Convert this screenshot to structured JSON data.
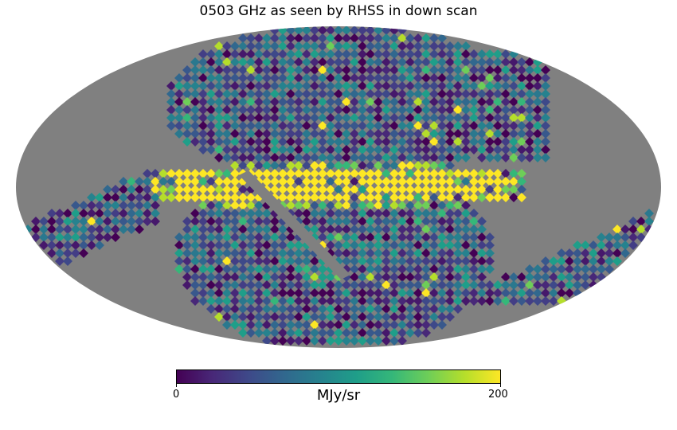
{
  "title": "0503 GHz as seen by RHSS in down scan",
  "colorbar": {
    "label": "MJy/sr",
    "min_label": "0",
    "max_label": "200",
    "min": 0,
    "max": 200,
    "colormap": "viridis",
    "stops": [
      "#440154",
      "#482878",
      "#3e4989",
      "#31688e",
      "#26828e",
      "#1f9e89",
      "#35b779",
      "#6ece58",
      "#b5de2b",
      "#fde725"
    ]
  },
  "map": {
    "projection": "mollweide",
    "missing_color": "#808080",
    "galactic_plane_color": "#fde725"
  }
}
